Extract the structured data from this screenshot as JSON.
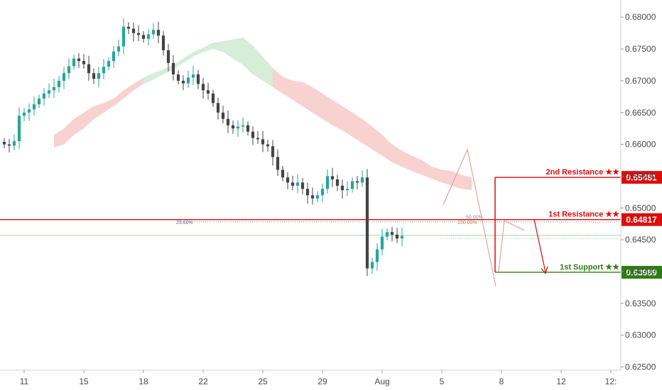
{
  "chart_data": {
    "type": "candlestick",
    "ylim": [
      0.6245,
      0.6827
    ],
    "y_ticks": [
      "0.68000",
      "0.67500",
      "0.67000",
      "0.66500",
      "0.66000",
      "0.65500",
      "0.65000",
      "0.64500",
      "0.64000",
      "0.63500",
      "0.63000",
      "0.62500"
    ],
    "y_tick_values": [
      0.68,
      0.675,
      0.67,
      0.665,
      0.66,
      0.655,
      0.65,
      0.645,
      0.64,
      0.635,
      0.63,
      0.625
    ],
    "x_ticks": [
      "11",
      "15",
      "18",
      "22",
      "25",
      "29",
      "Aug",
      "5",
      "8",
      "12",
      "12:"
    ],
    "x_tick_index": [
      0,
      12,
      24,
      36,
      48,
      60,
      72,
      84,
      96,
      108,
      118
    ],
    "last_index": 101,
    "closes": [
      0.66,
      0.6598,
      0.6605,
      0.6645,
      0.665,
      0.6655,
      0.6663,
      0.6672,
      0.668,
      0.6685,
      0.669,
      0.67,
      0.6712,
      0.6723,
      0.6735,
      0.6731,
      0.6726,
      0.6712,
      0.6703,
      0.6712,
      0.6722,
      0.6731,
      0.6746,
      0.6754,
      0.6785,
      0.6782,
      0.6775,
      0.6772,
      0.6766,
      0.6773,
      0.678,
      0.6771,
      0.6748,
      0.6728,
      0.671,
      0.67,
      0.6696,
      0.6705,
      0.671,
      0.6695,
      0.6685,
      0.668,
      0.6665,
      0.665,
      0.664,
      0.663,
      0.6625,
      0.6628,
      0.663,
      0.662,
      0.661,
      0.6608,
      0.66,
      0.6597,
      0.658,
      0.656,
      0.6548,
      0.654,
      0.6535,
      0.654,
      0.653,
      0.652,
      0.6515,
      0.652,
      0.653,
      0.655,
      0.6545,
      0.6535,
      0.6528,
      0.653,
      0.6542,
      0.654,
      0.6548,
      0.6405,
      0.6415,
      0.6435,
      0.6455,
      0.6462,
      0.6458,
      0.6452,
      0.6456
    ],
    "cloud_upper": [
      0.6615,
      0.6625,
      0.664,
      0.665,
      0.666,
      0.6665,
      0.6672,
      0.6685,
      0.6695,
      0.6705,
      0.6712,
      0.6718,
      0.6725,
      0.6735,
      0.6745,
      0.6752,
      0.676,
      0.6762,
      0.6765,
      0.6768,
      0.6755,
      0.6738,
      0.672,
      0.6706,
      0.67,
      0.6698,
      0.669,
      0.668,
      0.667,
      0.666,
      0.665,
      0.664,
      0.6628,
      0.6615,
      0.66,
      0.659,
      0.6582,
      0.6575,
      0.6565,
      0.656,
      0.6558,
      0.6552,
      0.6548
    ],
    "cloud_lower": [
      0.6595,
      0.66,
      0.6615,
      0.6625,
      0.664,
      0.665,
      0.666,
      0.6672,
      0.6685,
      0.6695,
      0.6702,
      0.671,
      0.6718,
      0.6728,
      0.6738,
      0.6745,
      0.675,
      0.6745,
      0.6735,
      0.6725,
      0.671,
      0.67,
      0.669,
      0.668,
      0.667,
      0.666,
      0.665,
      0.664,
      0.663,
      0.6622,
      0.6612,
      0.6602,
      0.6592,
      0.6582,
      0.6572,
      0.6565,
      0.6558,
      0.6552,
      0.6546,
      0.654,
      0.6535,
      0.653,
      0.6528
    ],
    "levels": [
      {
        "name": "2nd Resistance ★★",
        "value": 0.65481,
        "tag": "0.65481",
        "color": "#e00b0b"
      },
      {
        "name": "1st Resistance ★★",
        "value": 0.64817,
        "tag": "0.64817",
        "color": "#e00b0b"
      },
      {
        "name": "1st Support ★★",
        "value": 0.63989,
        "tag": "0.63989",
        "color": "#2e7d12"
      }
    ],
    "fib_labels": {
      "f236": "23.60%",
      "f50": "50.00%",
      "f100": "100.00%"
    },
    "current_price_line": 0.6457
  },
  "colors": {
    "up": "#26a69a",
    "down": "#444444",
    "resistance": "#e00b0b",
    "support": "#2e7d12",
    "cloud_bull": "#a5d6a7",
    "cloud_bear": "#ef9a9a",
    "axis": "#d0d0d0",
    "arrow": "#e8a0a0"
  }
}
